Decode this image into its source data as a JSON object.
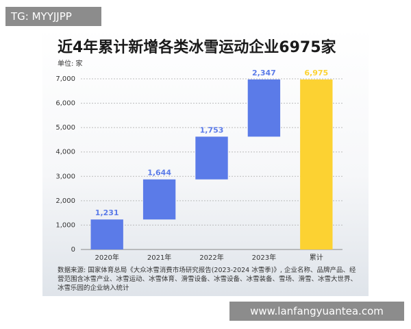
{
  "watermarks": {
    "top": "TG: MYYJJPP",
    "bottom": "www.lanfangyuantea.com"
  },
  "chart_data": {
    "type": "waterfall",
    "title": "近4年累计新增各类冰雪运动企业6975家",
    "unit_label": "单位: 家",
    "note": "数据来源: 国家体育总局《大众冰雪消费市场研究报告(2023-2024 冰雪季)》, 企业名称、品牌产品、经营范围含冰雪产业、冰雪运动、冰雪体育、滑雪设备、冰雪设备、冰雪装备、雪场、滑雪、冰雪大世界、冰雪乐园的企业纳入统计",
    "categories": [
      "2020年",
      "2021年",
      "2022年",
      "2023年",
      "累计"
    ],
    "values": [
      1231,
      1644,
      1753,
      2347,
      6975
    ],
    "value_labels": [
      "1,231",
      "1,644",
      "1,753",
      "2,347",
      "6,975"
    ],
    "is_total": [
      false,
      false,
      false,
      false,
      true
    ],
    "colors": [
      "#5b7be8",
      "#5b7be8",
      "#5b7be8",
      "#5b7be8",
      "#fcd232"
    ],
    "ylim": [
      0,
      7000
    ],
    "yticks": [
      0,
      {
        "value": 1000,
        "label": "1,000"
      },
      {
        "value": 2000,
        "label": "2,000"
      },
      {
        "value": 3000,
        "label": "3,000"
      },
      {
        "value": 4000,
        "label": "4,000"
      },
      {
        "value": 5000,
        "label": "5,000"
      },
      {
        "value": 6000,
        "label": "6,000"
      },
      {
        "value": 7000,
        "label": "7,000"
      }
    ],
    "grid": true
  }
}
